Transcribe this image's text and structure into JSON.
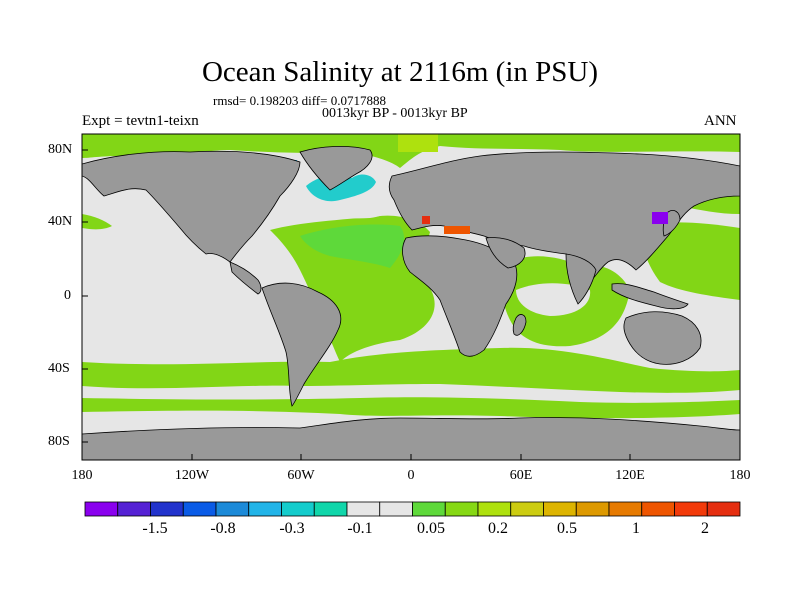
{
  "title": "Ocean Salinity at 2116m (in PSU)",
  "stats_line": "rmsd= 0.198203 diff= 0.0717888",
  "period_line": "0013kyr BP - 0013kyr BP",
  "experiment": "Expt = tevtn1-teixn",
  "season": "ANN",
  "axes": {
    "y_ticks": [
      "80N",
      "40N",
      "0",
      "40S",
      "80S"
    ],
    "x_ticks": [
      "180",
      "120W",
      "60W",
      "0",
      "60E",
      "120E",
      "180"
    ]
  },
  "colorbar": {
    "labels": [
      "-1.5",
      "-0.8",
      "-0.3",
      "-0.1",
      "0.05",
      "0.2",
      "0.5",
      "1",
      "2"
    ],
    "colors": [
      "#8a00ee",
      "#5521d4",
      "#2233cc",
      "#0a5be6",
      "#1c8ad8",
      "#22b4e8",
      "#14cccc",
      "#10d6aa",
      "#e6e6e6",
      "#e6e6e6",
      "#5ed93a",
      "#86d814",
      "#aee10e",
      "#cccc11",
      "#ddb400",
      "#dd9900",
      "#e67a00",
      "#ee5500",
      "#f23a0a",
      "#e52e10"
    ]
  },
  "colors": {
    "land": "#999999",
    "ocean_neutral": "#e6e6e6",
    "green": "#82d616",
    "green_light": "#5ed93a",
    "cyan": "#22cccc",
    "purple": "#8a00ee",
    "orange": "#ee5500"
  }
}
